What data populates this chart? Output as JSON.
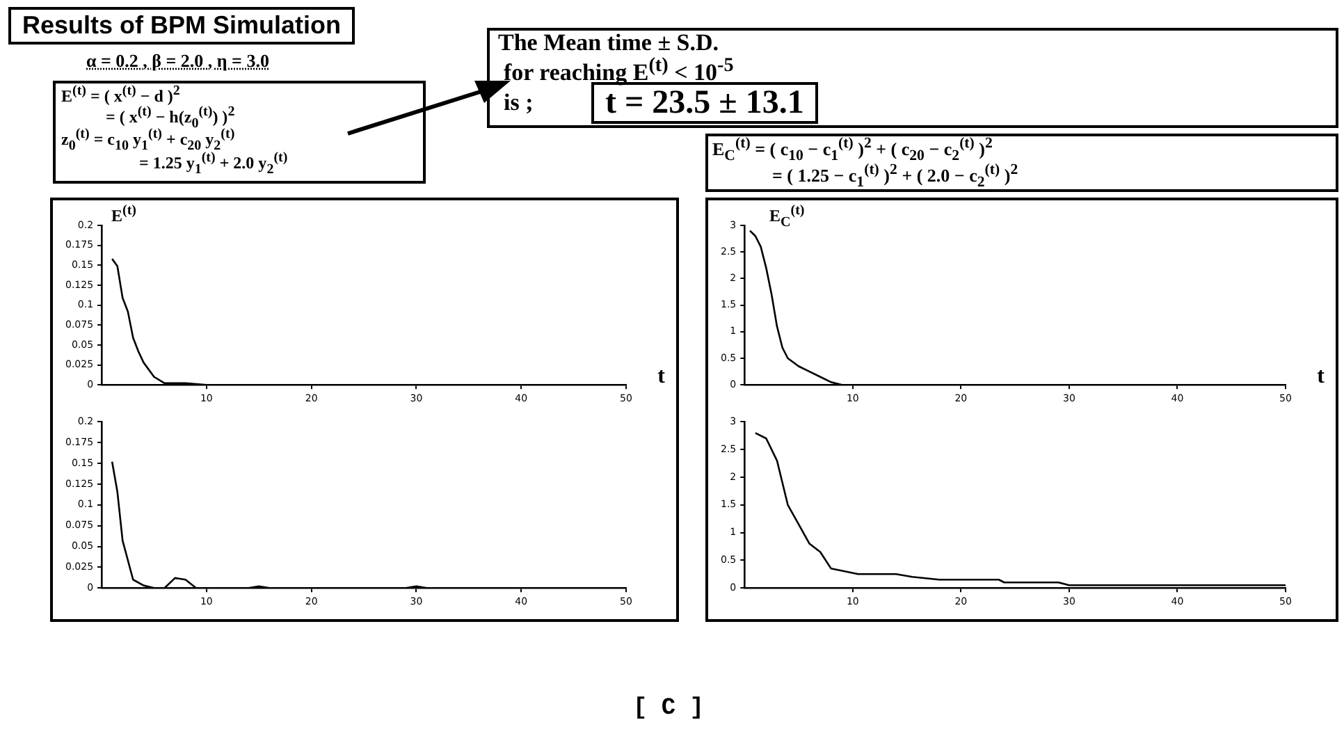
{
  "chart_data": [
    {
      "type": "line",
      "title": "Results of BPM Simulation",
      "ylabel": "E$^{(t)}$",
      "xlabel": "t",
      "annotations": [
        "α = 0.2 , β = 2.0 , η = 3.0",
        "E$^{(t)}$ = ( x$^{(t)}$ − d )$^{2}$",
        "= ( x$^{(t)}$ − h(z$_{0}$$^{(t)}$) )$^{2}$",
        "z$_{0}$$^{(t)}$ = c$_{10}$ y$_{1}$$^{(t)}$ + c$_{20}$ y$_{2}$$^{(t)}$",
        "= 1.25 y$_{1}$$^{(t)}$ + 2.0 y$_{2}$$^{(t)}$",
        "The Mean time ± S.D.",
        "for reaching  E$^{(t)}$ < 10$^{-5}$",
        "is ;",
        "t = 23.5 ± 13.1",
        "E$_{C}$$^{(t)}$ = ( c$_{10}$ − c$_{1}$$^{(t)}$ )$^{2}$ + ( c$_{20}$ − c$_{2}$$^{(t)}$ )$^{2}$",
        "= ( 1.25 − c$_{1}$$^{(t)}$ )$^{2}$ + ( 2.0 − c$_{2}$$^{(t)}$ )$^{2}$",
        "[ C ]"
      ],
      "x": [
        1,
        1.5,
        2,
        2.5,
        3,
        3.5,
        4,
        5,
        6,
        8,
        10,
        50
      ],
      "series": [
        {
          "color": "#000000",
          "values": [
            0.158,
            0.149,
            0.109,
            0.092,
            0.059,
            0.042,
            0.028,
            0.01,
            0.002,
            0.002,
            0,
            0
          ]
        }
      ],
      "xlim": [
        0,
        50
      ],
      "xticks": [
        10,
        20,
        30,
        40,
        50
      ],
      "ylim": [
        0,
        0.2
      ],
      "yticks": [
        0,
        0.025,
        0.05,
        0.075,
        0.1,
        0.125,
        0.15,
        0.175,
        0.2
      ],
      "marker": "none",
      "line_style": "solid",
      "legend": false
    },
    {
      "type": "line",
      "x": [
        1,
        1.5,
        2,
        3,
        4,
        5,
        6,
        7,
        8,
        9,
        14,
        15,
        16,
        29,
        30,
        31,
        50
      ],
      "series": [
        {
          "color": "#000000",
          "values": [
            0.152,
            0.116,
            0.057,
            0.01,
            0.003,
            0,
            0,
            0.012,
            0.01,
            0,
            0,
            0.002,
            0,
            0,
            0.002,
            0,
            0
          ]
        }
      ],
      "xlim": [
        0,
        50
      ],
      "xticks": [
        10,
        20,
        30,
        40,
        50
      ],
      "ylim": [
        0,
        0.2
      ],
      "yticks": [
        0,
        0.025,
        0.05,
        0.075,
        0.1,
        0.125,
        0.15,
        0.175,
        0.2
      ],
      "marker": "none",
      "line_style": "solid",
      "legend": false
    },
    {
      "type": "line",
      "ylabel": "E$_{C}$$^{(t)}$",
      "xlabel": "t",
      "x": [
        0.5,
        1,
        1.5,
        2,
        2.5,
        3,
        3.5,
        4,
        5,
        6,
        7,
        8,
        9,
        50
      ],
      "series": [
        {
          "color": "#000000",
          "values": [
            2.9,
            2.8,
            2.6,
            2.2,
            1.7,
            1.1,
            0.7,
            0.5,
            0.35,
            0.25,
            0.15,
            0.05,
            0,
            0
          ]
        }
      ],
      "xlim": [
        0,
        50
      ],
      "xticks": [
        10,
        20,
        30,
        40,
        50
      ],
      "ylim": [
        0,
        3
      ],
      "yticks": [
        0,
        0.5,
        1,
        1.5,
        2,
        2.5,
        3
      ],
      "marker": "none",
      "line_style": "solid",
      "legend": false
    },
    {
      "type": "line",
      "x": [
        1,
        2,
        3,
        4,
        5,
        6,
        7,
        8,
        10.5,
        14,
        15.5,
        18,
        23.5,
        24,
        29,
        30,
        40,
        50
      ],
      "series": [
        {
          "color": "#000000",
          "values": [
            2.8,
            2.7,
            2.3,
            1.5,
            1.15,
            0.8,
            0.65,
            0.35,
            0.25,
            0.25,
            0.2,
            0.15,
            0.15,
            0.1,
            0.1,
            0.05,
            0.05,
            0.05
          ]
        }
      ],
      "xlim": [
        0,
        50
      ],
      "xticks": [
        10,
        20,
        30,
        40,
        50
      ],
      "ylim": [
        0,
        3
      ],
      "yticks": [
        0,
        0.5,
        1,
        1.5,
        2,
        2.5,
        3
      ],
      "marker": "none",
      "line_style": "solid",
      "legend": false
    }
  ]
}
